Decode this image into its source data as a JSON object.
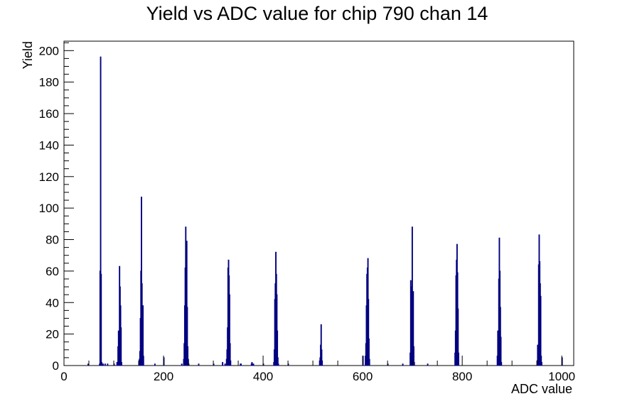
{
  "chart_data": {
    "type": "bar",
    "title": "Yield vs ADC value for chip 790 chan 14",
    "xlabel": "ADC value",
    "ylabel": "Yield",
    "xlim": [
      0,
      1024
    ],
    "ylim": [
      0,
      206
    ],
    "grid": false,
    "line_color": "#000080",
    "x_ticks": [
      0,
      200,
      400,
      600,
      800,
      1000
    ],
    "y_ticks": [
      0,
      20,
      40,
      60,
      80,
      100,
      120,
      140,
      160,
      180,
      200
    ],
    "series": [
      {
        "values": [
          [
            48,
            1
          ],
          [
            71,
            1
          ],
          [
            72,
            60
          ],
          [
            73,
            196
          ],
          [
            74,
            58
          ],
          [
            75,
            2
          ],
          [
            76,
            1
          ],
          [
            78,
            1
          ],
          [
            82,
            1
          ],
          [
            87,
            1
          ],
          [
            100,
            1
          ],
          [
            106,
            2
          ],
          [
            108,
            12
          ],
          [
            109,
            22
          ],
          [
            110,
            20
          ],
          [
            111,
            63
          ],
          [
            112,
            50
          ],
          [
            113,
            38
          ],
          [
            114,
            24
          ],
          [
            115,
            2
          ],
          [
            150,
            2
          ],
          [
            151,
            4
          ],
          [
            152,
            9
          ],
          [
            153,
            30
          ],
          [
            154,
            60
          ],
          [
            155,
            107
          ],
          [
            156,
            52
          ],
          [
            157,
            38
          ],
          [
            158,
            38
          ],
          [
            159,
            6
          ],
          [
            182,
            1
          ],
          [
            200,
            5
          ],
          [
            236,
            1
          ],
          [
            240,
            4
          ],
          [
            241,
            14
          ],
          [
            242,
            38
          ],
          [
            243,
            62
          ],
          [
            244,
            88
          ],
          [
            245,
            39
          ],
          [
            246,
            79
          ],
          [
            247,
            37
          ],
          [
            248,
            12
          ],
          [
            249,
            4
          ],
          [
            250,
            1
          ],
          [
            270,
            1
          ],
          [
            300,
            1
          ],
          [
            318,
            2
          ],
          [
            323,
            1
          ],
          [
            326,
            4
          ],
          [
            327,
            10
          ],
          [
            328,
            24
          ],
          [
            329,
            62
          ],
          [
            330,
            67
          ],
          [
            331,
            57
          ],
          [
            332,
            45
          ],
          [
            333,
            14
          ],
          [
            334,
            3
          ],
          [
            354,
            1
          ],
          [
            355,
            1
          ],
          [
            376,
            1
          ],
          [
            377,
            2
          ],
          [
            378,
            1
          ],
          [
            380,
            1
          ],
          [
            400,
            1
          ],
          [
            421,
            2
          ],
          [
            422,
            10
          ],
          [
            423,
            42
          ],
          [
            424,
            52
          ],
          [
            425,
            72
          ],
          [
            426,
            58
          ],
          [
            427,
            45
          ],
          [
            428,
            22
          ],
          [
            429,
            5
          ],
          [
            430,
            1
          ],
          [
            450,
            1
          ],
          [
            513,
            3
          ],
          [
            514,
            5
          ],
          [
            515,
            13
          ],
          [
            516,
            26
          ],
          [
            517,
            10
          ],
          [
            518,
            3
          ],
          [
            600,
            6
          ],
          [
            605,
            6
          ],
          [
            606,
            14
          ],
          [
            607,
            38
          ],
          [
            608,
            58
          ],
          [
            609,
            62
          ],
          [
            610,
            68
          ],
          [
            611,
            42
          ],
          [
            612,
            17
          ],
          [
            613,
            4
          ],
          [
            650,
            1
          ],
          [
            680,
            1
          ],
          [
            695,
            8
          ],
          [
            696,
            54
          ],
          [
            697,
            26
          ],
          [
            698,
            50
          ],
          [
            699,
            88
          ],
          [
            700,
            38
          ],
          [
            701,
            47
          ],
          [
            702,
            12
          ],
          [
            703,
            2
          ],
          [
            730,
            1
          ],
          [
            785,
            8
          ],
          [
            786,
            22
          ],
          [
            787,
            57
          ],
          [
            788,
            67
          ],
          [
            789,
            77
          ],
          [
            790,
            59
          ],
          [
            791,
            36
          ],
          [
            792,
            8
          ],
          [
            870,
            6
          ],
          [
            871,
            22
          ],
          [
            872,
            21
          ],
          [
            873,
            55
          ],
          [
            874,
            81
          ],
          [
            875,
            60
          ],
          [
            876,
            37
          ],
          [
            877,
            18
          ],
          [
            878,
            2
          ],
          [
            950,
            3
          ],
          [
            951,
            13
          ],
          [
            952,
            12
          ],
          [
            953,
            64
          ],
          [
            954,
            83
          ],
          [
            955,
            66
          ],
          [
            956,
            52
          ],
          [
            957,
            44
          ],
          [
            958,
            6
          ],
          [
            959,
            2
          ],
          [
            1000,
            5
          ]
        ]
      }
    ]
  }
}
